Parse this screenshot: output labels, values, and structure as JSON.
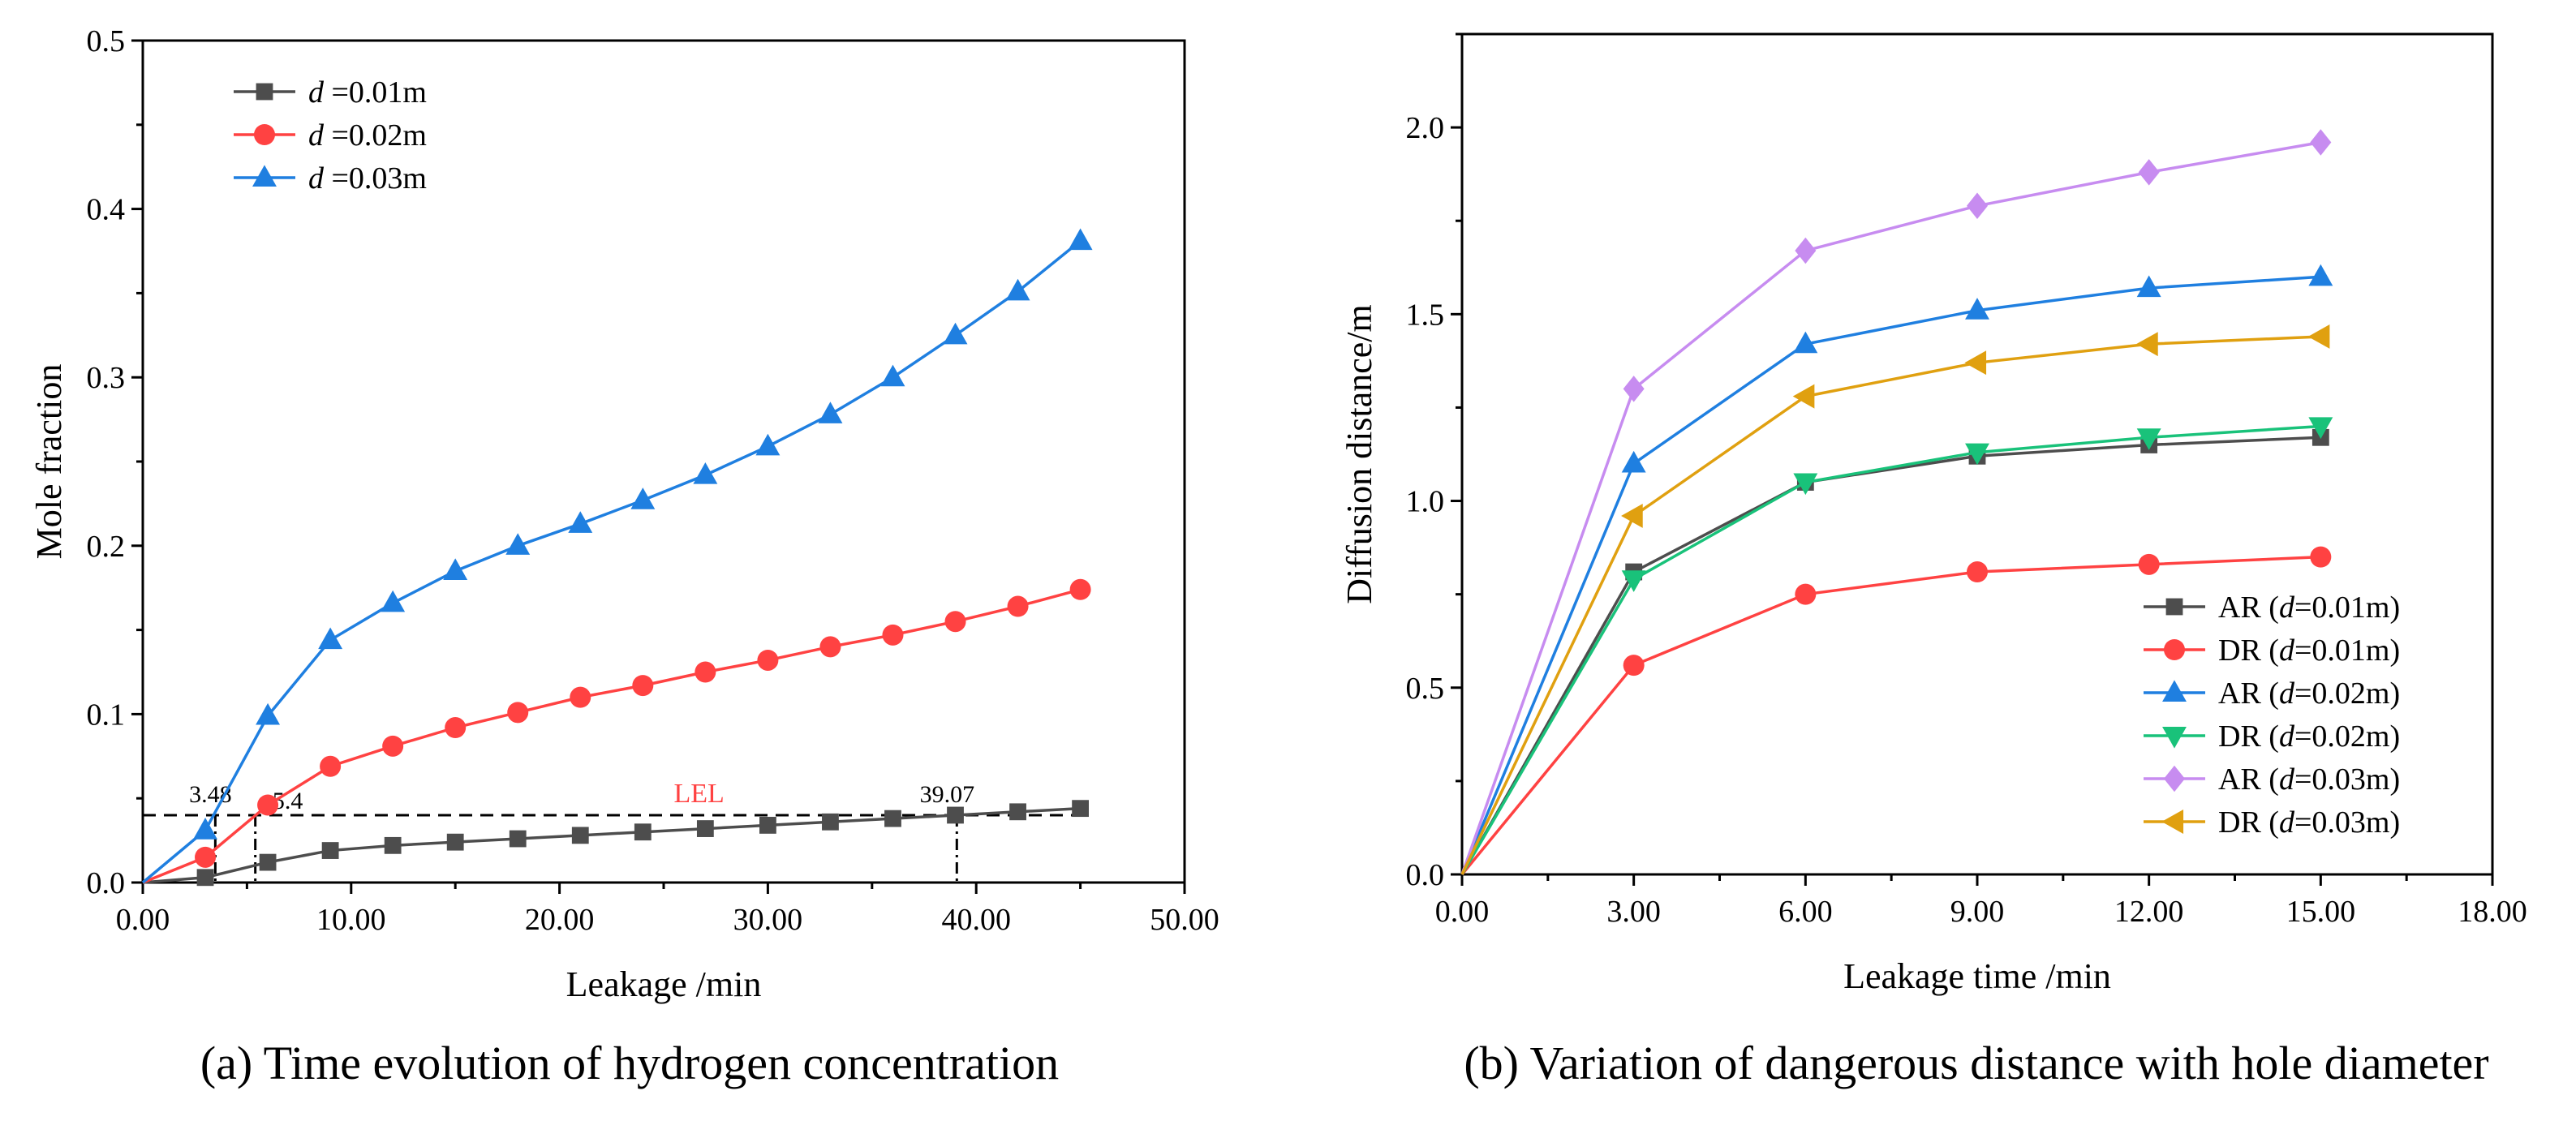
{
  "chart_data": [
    {
      "type": "line",
      "caption": "(a) Time evolution of hydrogen concentration",
      "xlabel": "Leakage /min",
      "ylabel": "Mole fraction",
      "xlim": [
        0,
        50
      ],
      "ylim": [
        0,
        0.5
      ],
      "xticks": [
        "0.00",
        "10.00",
        "20.00",
        "30.00",
        "40.00",
        "50.00"
      ],
      "yticks": [
        "0.0",
        "0.1",
        "0.2",
        "0.3",
        "0.4",
        "0.5"
      ],
      "legend": "top-left",
      "series": [
        {
          "name": "d =0.01m",
          "var": "d",
          "rest": " =0.01m",
          "color": "#4d4d4d",
          "marker": "square",
          "x": [
            0,
            3,
            6,
            9,
            12,
            15,
            18,
            21,
            24,
            27,
            30,
            33,
            36,
            39,
            42,
            45
          ],
          "y": [
            0,
            0.003,
            0.012,
            0.019,
            0.022,
            0.024,
            0.026,
            0.028,
            0.03,
            0.032,
            0.034,
            0.036,
            0.038,
            0.04,
            0.042,
            0.044
          ]
        },
        {
          "name": "d =0.02m",
          "var": "d",
          "rest": " =0.02m",
          "color": "#ff4242",
          "marker": "circle",
          "x": [
            0,
            3,
            6,
            9,
            12,
            15,
            18,
            21,
            24,
            27,
            30,
            33,
            36,
            39,
            42,
            45
          ],
          "y": [
            0,
            0.015,
            0.046,
            0.069,
            0.081,
            0.092,
            0.101,
            0.11,
            0.117,
            0.125,
            0.132,
            0.14,
            0.147,
            0.155,
            0.164,
            0.174
          ]
        },
        {
          "name": "d =0.03m",
          "var": "d",
          "rest": " =0.03m",
          "color": "#1f7fe0",
          "marker": "triangle",
          "x": [
            0,
            3,
            6,
            9,
            12,
            15,
            18,
            21,
            24,
            27,
            30,
            33,
            36,
            39,
            42,
            45
          ],
          "y": [
            0,
            0.031,
            0.099,
            0.144,
            0.166,
            0.185,
            0.2,
            0.213,
            0.227,
            0.242,
            0.259,
            0.278,
            0.3,
            0.325,
            0.351,
            0.381
          ]
        }
      ],
      "annotations": {
        "lel_label": "LEL",
        "lel_value": 0.04,
        "lel_color": "#ff4242",
        "markers": [
          {
            "text": "3.48",
            "x": 3.48
          },
          {
            "text": "5.4",
            "x": 5.4
          },
          {
            "text": "39.07",
            "x": 39.07
          }
        ]
      }
    },
    {
      "type": "line",
      "caption": "(b) Variation of dangerous distance with hole diameter",
      "xlabel": "Leakage time /min",
      "ylabel": "Diffusion distance/m",
      "xlim": [
        0,
        18
      ],
      "ylim": [
        0,
        2.25
      ],
      "xticks": [
        "0.00",
        "3.00",
        "6.00",
        "9.00",
        "12.00",
        "15.00",
        "18.00"
      ],
      "yticks": [
        "0.0",
        "0.5",
        "1.0",
        "1.5",
        "2.0"
      ],
      "legend": "bottom-right",
      "series": [
        {
          "name": "AR (d=0.01m)",
          "pre": "AR (",
          "var": "d",
          "rest": "=0.01m)",
          "color": "#4d4d4d",
          "marker": "square",
          "x": [
            0,
            3,
            6,
            9,
            12,
            15
          ],
          "y": [
            0,
            0.81,
            1.05,
            1.12,
            1.15,
            1.17
          ]
        },
        {
          "name": "DR (d=0.01m)",
          "pre": "DR (",
          "var": "d",
          "rest": "=0.01m)",
          "color": "#ff4242",
          "marker": "circle",
          "x": [
            0,
            3,
            6,
            9,
            12,
            15
          ],
          "y": [
            0,
            0.56,
            0.75,
            0.81,
            0.83,
            0.85
          ]
        },
        {
          "name": "AR (d=0.02m)",
          "pre": "AR (",
          "var": "d",
          "rest": "=0.02m)",
          "color": "#1f7fe0",
          "marker": "triangle",
          "x": [
            0,
            3,
            6,
            9,
            12,
            15
          ],
          "y": [
            0,
            1.1,
            1.42,
            1.51,
            1.57,
            1.6
          ]
        },
        {
          "name": "DR (d=0.02m)",
          "pre": "DR (",
          "var": "d",
          "rest": "=0.02m)",
          "color": "#19c27a",
          "marker": "triangle-down",
          "x": [
            0,
            3,
            6,
            9,
            12,
            15
          ],
          "y": [
            0,
            0.79,
            1.05,
            1.13,
            1.17,
            1.2
          ]
        },
        {
          "name": "AR (d=0.03m)",
          "pre": "AR (",
          "var": "d",
          "rest": "=0.03m)",
          "color": "#c78cf0",
          "marker": "diamond",
          "x": [
            0,
            3,
            6,
            9,
            12,
            15
          ],
          "y": [
            0,
            1.3,
            1.67,
            1.79,
            1.88,
            1.96
          ]
        },
        {
          "name": "DR (d=0.03m)",
          "pre": "DR (",
          "var": "d",
          "rest": "=0.03m)",
          "color": "#e0a010",
          "marker": "triangle-left",
          "x": [
            0,
            3,
            6,
            9,
            12,
            15
          ],
          "y": [
            0,
            0.96,
            1.28,
            1.37,
            1.42,
            1.44
          ]
        }
      ]
    }
  ]
}
